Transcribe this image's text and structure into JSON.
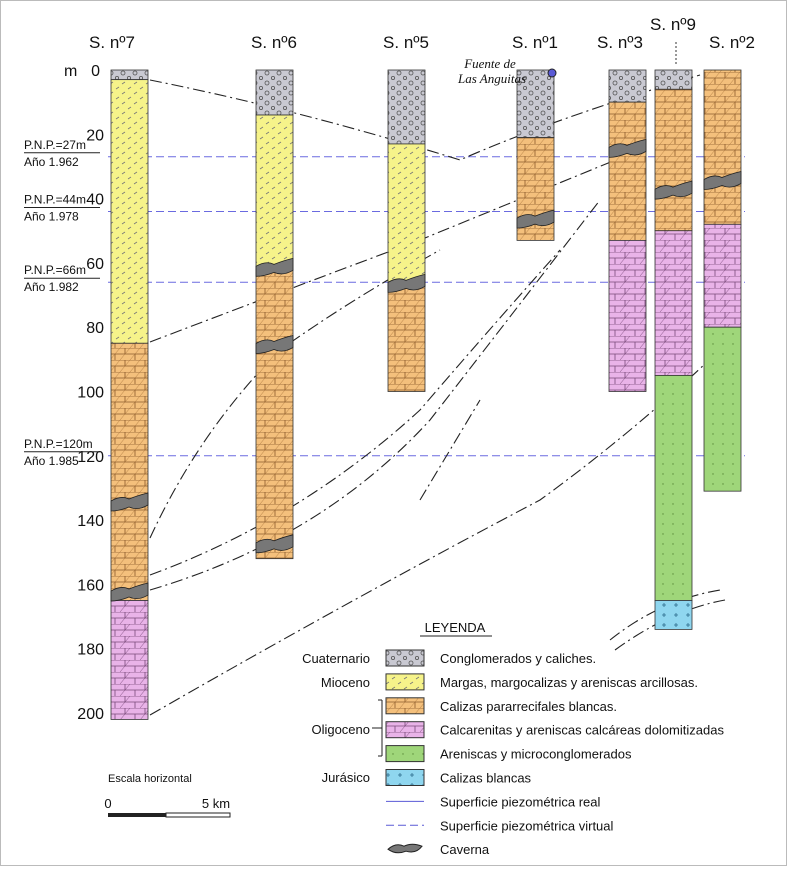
{
  "columns": [
    "S. nº7",
    "S. nº6",
    "S. nº5",
    "S. nº1",
    "S. nº3",
    "S. nº9",
    "S. nº2"
  ],
  "depth_axis": {
    "unit": "m",
    "ticks": [
      "0",
      "20",
      "40",
      "60",
      "80",
      "100",
      "120",
      "140",
      "160",
      "180",
      "200"
    ]
  },
  "water_levels": [
    {
      "level": "P.N.P.=27m",
      "year": "Año 1.962"
    },
    {
      "level": "P.N.P.=44m",
      "year": "Año 1.978"
    },
    {
      "level": "P.N.P.=66m",
      "year": "Año 1.982"
    },
    {
      "level": "P.N.P.=120m",
      "year": "Año 1.985"
    }
  ],
  "spring": [
    "Fuente de",
    "Las Anguitas"
  ],
  "legend": {
    "title": "LEYENDA",
    "groups": [
      "Cuaternario",
      "Mioceno",
      "Oligoceno",
      "Jurásico"
    ],
    "items": [
      "Conglomerados y caliches.",
      "Margas, margocalizas y areniscas arcillosas.",
      "Calizas pararrecifales blancas.",
      "Calcarenitas y areniscas calcáreas dolomitizadas",
      "Areniscas y microconglomerados",
      "Calizas blancas",
      "Superficie piezométrica real",
      "Superficie piezométrica virtual",
      "Caverna"
    ]
  },
  "scale": {
    "title": "Escala horizontal",
    "start": "0",
    "end": "5 km"
  }
}
